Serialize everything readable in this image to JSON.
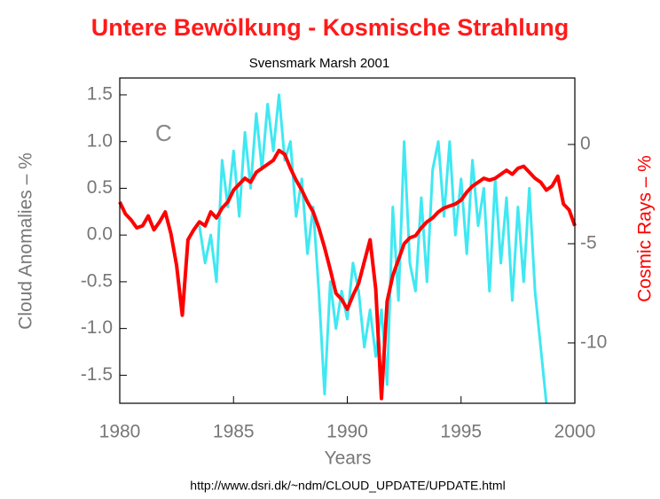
{
  "chart_data": {
    "type": "line",
    "title": "Untere Bewölkung - Kosmische Strahlung",
    "subtitle": "Svensmark Marsh 2001",
    "annotation": "C",
    "x_label": "Years",
    "y_label": "Cloud Anomalies – %",
    "y2_label": "Cosmic Rays – %",
    "source": "http://www.dsri.dk/~ndm/CLOUD_UPDATE/UPDATE.html",
    "xlim": [
      1980,
      2000
    ],
    "xticks": [
      1980,
      1985,
      1990,
      1995,
      2000
    ],
    "ylim": [
      -1.8,
      1.68
    ],
    "yticks": [
      {
        "value": 1.5,
        "label": "1.5"
      },
      {
        "value": 1.0,
        "label": "1.0"
      },
      {
        "value": 0.5,
        "label": "0.5"
      },
      {
        "value": 0,
        "label": "0.0"
      },
      -0.5,
      {
        "value": -1.0,
        "label": "-1.0"
      },
      {
        "value": -1.5,
        "label": "-1.5"
      }
    ],
    "y2lim": [
      -13.04,
      3.35
    ],
    "y2ticks": [
      0,
      -5,
      -10
    ],
    "x": [
      1980,
      1980.25,
      1980.5,
      1980.75,
      1981,
      1981.25,
      1981.5,
      1981.75,
      1982,
      1982.25,
      1982.5,
      1982.75,
      1983,
      1983.25,
      1983.5,
      1983.75,
      1984,
      1984.25,
      1984.5,
      1984.75,
      1985,
      1985.25,
      1985.5,
      1985.75,
      1986,
      1986.25,
      1986.5,
      1986.75,
      1987,
      1987.25,
      1987.5,
      1987.75,
      1988,
      1988.25,
      1988.5,
      1988.75,
      1989,
      1989.25,
      1989.5,
      1989.75,
      1990,
      1990.25,
      1990.5,
      1990.75,
      1991,
      1991.25,
      1991.5,
      1991.75,
      1992,
      1992.25,
      1992.5,
      1992.75,
      1993,
      1993.25,
      1993.5,
      1993.75,
      1994,
      1994.25,
      1994.5,
      1994.75,
      1995,
      1995.25,
      1995.5,
      1995.75,
      1996,
      1996.25,
      1996.5,
      1996.75,
      1997,
      1997.25,
      1997.5,
      1997.75,
      1998,
      1998.25,
      1998.5,
      1998.75,
      1999,
      1999.25,
      1999.5,
      1999.75,
      2000
    ],
    "series": [
      {
        "color": "#3fe8f2",
        "values": [
          null,
          null,
          null,
          null,
          null,
          null,
          null,
          null,
          null,
          null,
          null,
          null,
          null,
          null,
          0.1,
          -0.3,
          0.0,
          -0.5,
          0.8,
          0.3,
          0.9,
          0.2,
          1.1,
          0.5,
          1.3,
          0.7,
          1.4,
          0.9,
          1.5,
          0.8,
          1.0,
          0.2,
          0.6,
          -0.2,
          0.3,
          -0.6,
          -1.7,
          -0.5,
          -1.0,
          -0.6,
          -0.9,
          -0.3,
          -0.6,
          -1.2,
          -0.8,
          -1.3,
          -0.8,
          -1.6,
          0.3,
          -0.7,
          1.0,
          -0.3,
          -0.6,
          0.4,
          -0.5,
          0.7,
          1.0,
          0.2,
          1.0,
          0.0,
          0.6,
          -0.2,
          0.8,
          0.1,
          0.5,
          -0.6,
          0.6,
          -0.3,
          0.4,
          -0.7,
          0.3,
          -0.5,
          0.5,
          -0.6,
          -1.2,
          -1.8,
          null,
          null,
          null,
          null,
          null
        ]
      },
      {
        "color": "#ff0000",
        "axis": "y2",
        "values": [
          -2.9,
          -3.5,
          -3.8,
          -4.2,
          -4.1,
          -3.6,
          -4.3,
          -3.9,
          -3.4,
          -4.5,
          -6.1,
          -8.6,
          -4.8,
          -4.3,
          -3.9,
          -4.1,
          -3.4,
          -3.7,
          -3.2,
          -2.9,
          -2.3,
          -2.0,
          -1.7,
          -1.9,
          -1.4,
          -1.2,
          -1.0,
          -0.8,
          -0.3,
          -0.5,
          -1.2,
          -1.8,
          -2.3,
          -2.9,
          -3.4,
          -4.2,
          -5.2,
          -6.3,
          -7.5,
          -7.8,
          -8.3,
          -7.6,
          -7.0,
          -5.9,
          -4.8,
          -7.3,
          -12.8,
          -7.9,
          -6.6,
          -5.8,
          -5.0,
          -4.7,
          -4.6,
          -4.2,
          -3.9,
          -3.7,
          -3.4,
          -3.2,
          -3.1,
          -3.0,
          -2.8,
          -2.4,
          -2.1,
          -1.9,
          -1.7,
          -1.8,
          -1.7,
          -1.5,
          -1.3,
          -1.5,
          -1.2,
          -1.1,
          -1.4,
          -1.7,
          -1.9,
          -2.3,
          -2.1,
          -1.6,
          -3.0,
          -3.3,
          -4.1
        ]
      }
    ]
  }
}
